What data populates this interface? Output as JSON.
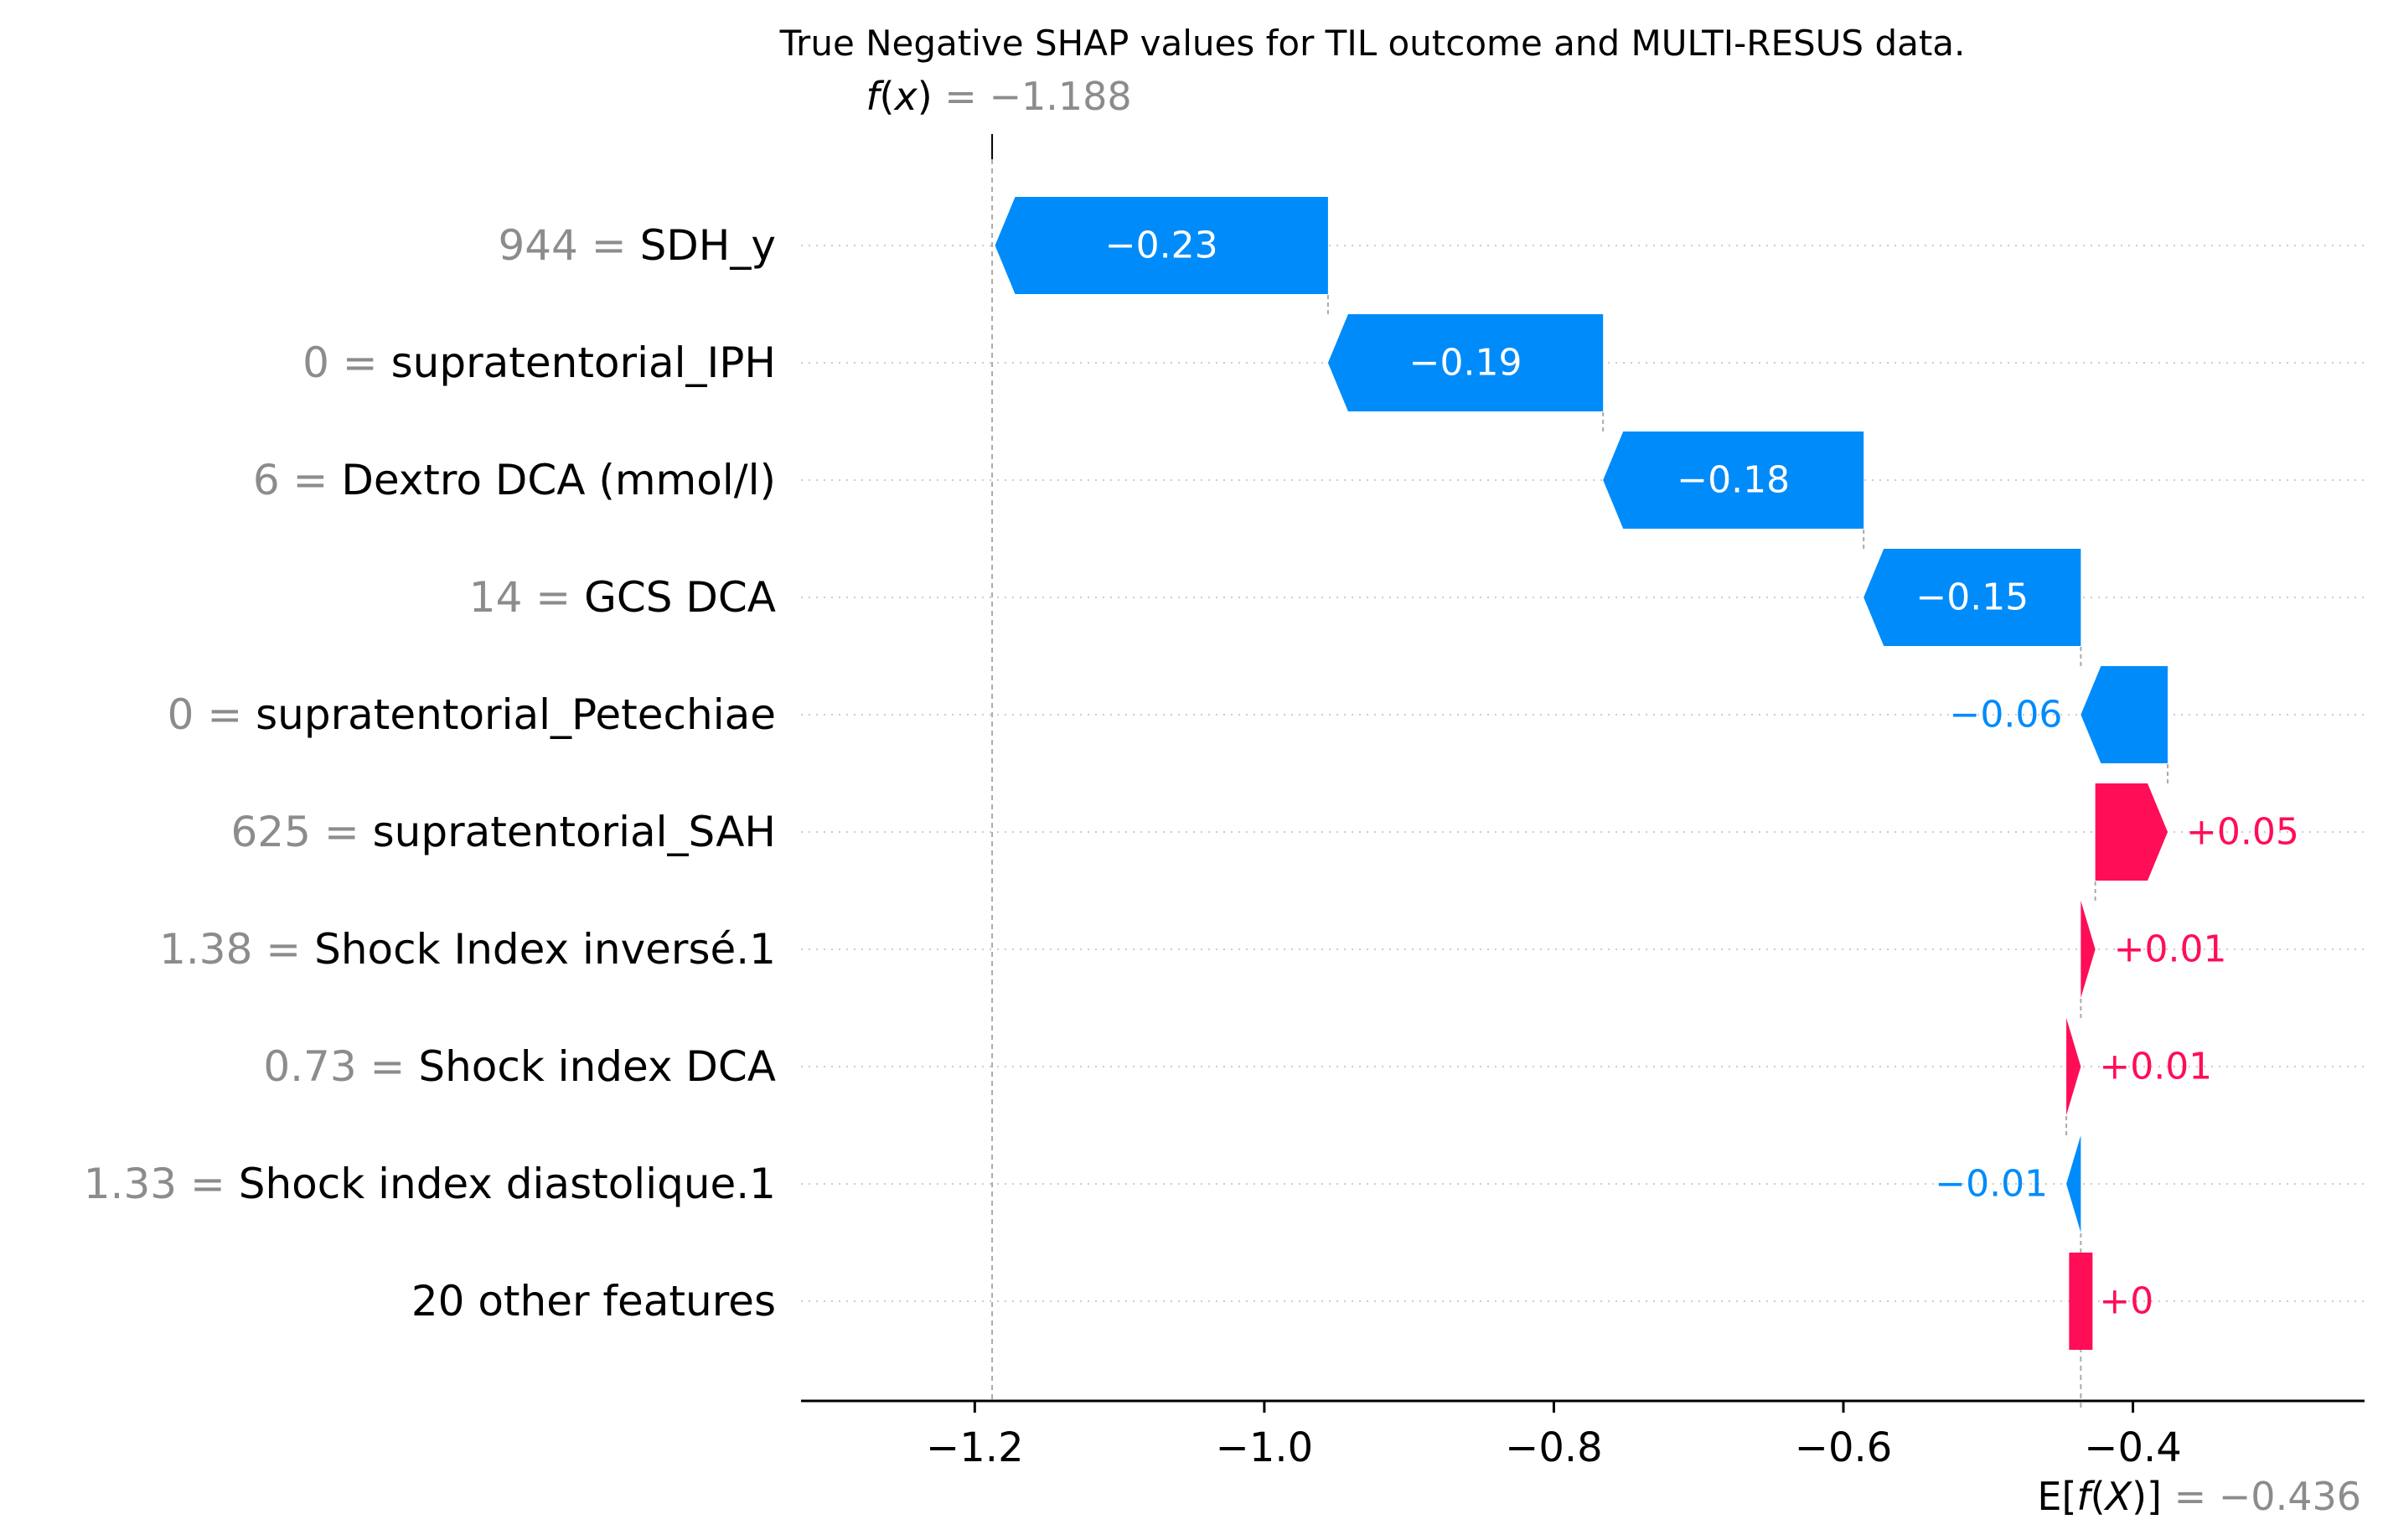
{
  "chart_data": {
    "type": "waterfall",
    "title": "True Negative SHAP values for TIL outcome and MULTI-RESUS data.",
    "fx": {
      "prefix": "f",
      "var": "x",
      "eq": " = ",
      "value": "−1.188",
      "num": -1.188
    },
    "efx": {
      "prefix": "E[",
      "fn": "f",
      "open": "(",
      "var": "X",
      "close": ")]",
      "eq": " = ",
      "value": "−0.436",
      "num": -0.436
    },
    "base_value": -0.436,
    "xlim": [
      -1.32,
      -0.24
    ],
    "xticks": [
      -1.2,
      -1.0,
      -0.8,
      -0.6,
      -0.4
    ],
    "xtick_labels": [
      "−1.2",
      "−1.0",
      "−0.8",
      "−0.6",
      "−0.4"
    ],
    "features": [
      {
        "value": "944",
        "name": "SDH_y",
        "shap": -0.23,
        "label": "−0.23"
      },
      {
        "value": "0",
        "name": "supratentorial_IPH",
        "shap": -0.19,
        "label": "−0.19"
      },
      {
        "value": "6",
        "name": "Dextro DCA (mmol/l)",
        "shap": -0.18,
        "label": "−0.18"
      },
      {
        "value": "14",
        "name": "GCS DCA",
        "shap": -0.15,
        "label": "−0.15"
      },
      {
        "value": "0",
        "name": "supratentorial_Petechiae",
        "shap": -0.06,
        "label": "−0.06"
      },
      {
        "value": "625",
        "name": "supratentorial_SAH",
        "shap": 0.05,
        "label": "+0.05"
      },
      {
        "value": "1.38",
        "name": "Shock Index inversé.1",
        "shap": 0.01,
        "label": "+0.01"
      },
      {
        "value": "0.73",
        "name": "Shock index DCA",
        "shap": 0.01,
        "label": "+0.01"
      },
      {
        "value": "1.33",
        "name": "Shock index diastolique.1",
        "shap": -0.01,
        "label": "−0.01"
      },
      {
        "value": "",
        "name": "20 other features",
        "shap": 0.0,
        "label": "+0"
      }
    ],
    "colors": {
      "positive": "#ff0d57",
      "negative": "#008bfb",
      "grid": "#cccccc",
      "muted": "#8c8c8c"
    }
  }
}
